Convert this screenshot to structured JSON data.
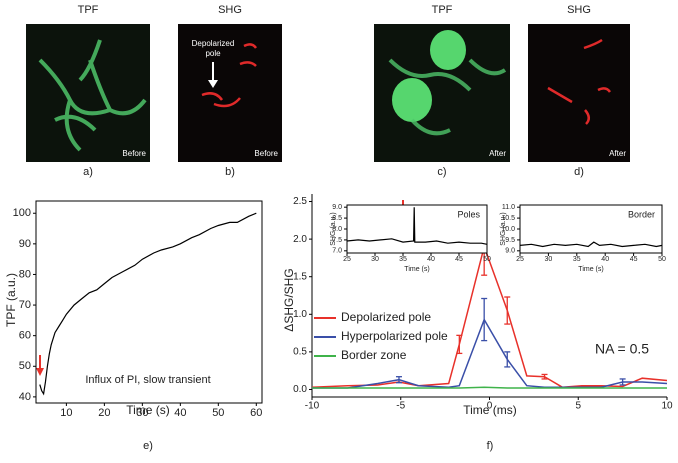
{
  "images": [
    {
      "title": "TPF",
      "tag": "Before",
      "caption": "a)"
    },
    {
      "title": "SHG",
      "tag": "Before",
      "caption": "b)",
      "annotation": [
        "Depolarized",
        "pole"
      ]
    },
    {
      "title": "TPF",
      "tag": "After",
      "caption": "c)"
    },
    {
      "title": "SHG",
      "tag": "After",
      "caption": "d)"
    }
  ],
  "chart_data": [
    {
      "type": "line",
      "caption": "e)",
      "xlabel": "Time (s)",
      "ylabel": "TPF (a.u.)",
      "annotation": "Influx of PI, slow transient",
      "color": "#000000",
      "x": [
        3,
        3.5,
        4,
        4.5,
        5,
        5.5,
        6,
        7,
        8,
        9,
        10,
        12,
        14,
        16,
        18,
        20,
        22,
        25,
        28,
        30,
        33,
        35,
        38,
        40,
        43,
        45,
        48,
        50,
        53,
        55,
        58,
        60
      ],
      "values": [
        44,
        42,
        41,
        45,
        50,
        54,
        57,
        61,
        63,
        65,
        67,
        70,
        72,
        74,
        75,
        77,
        79,
        81,
        83,
        85,
        87,
        88,
        89,
        90,
        92,
        93,
        95,
        96,
        97,
        97,
        99,
        100
      ],
      "xlim": [
        2,
        61.5
      ],
      "ylim": [
        38,
        104
      ],
      "xticks": [
        10,
        20,
        30,
        40,
        50,
        60
      ],
      "yticks": [
        40,
        50,
        60,
        70,
        80,
        90,
        100
      ]
    },
    {
      "type": "line",
      "caption": "f)",
      "xlabel": "Time (ms)",
      "ylabel": "ΔSHG/SHG",
      "annotation": "NA = 0.5",
      "x": [
        -10,
        -8,
        -6.3,
        -5.1,
        -4,
        -2.3,
        -1.7,
        -0.3,
        1,
        2.1,
        3.1,
        4.1,
        5.2,
        6.3,
        7.5,
        8.6,
        10
      ],
      "series": [
        {
          "name": "Depolarized pole",
          "color": "#e8312a",
          "values": [
            0.03,
            0.05,
            0.06,
            0.1,
            0.05,
            0.08,
            0.6,
            1.9,
            1.05,
            0.18,
            0.17,
            0.03,
            0.05,
            0.05,
            0.04,
            0.15,
            0.12
          ],
          "errors": [
            null,
            null,
            null,
            null,
            null,
            null,
            0.12,
            0.38,
            0.18,
            null,
            0.03,
            null,
            null,
            null,
            null,
            null,
            null
          ]
        },
        {
          "name": "Hyperpolarized pole",
          "color": "#3a4fa8",
          "values": [
            0.02,
            0.02,
            0.08,
            0.13,
            0.05,
            0.03,
            0.05,
            0.93,
            0.4,
            0.05,
            0.03,
            0.03,
            0.03,
            0.03,
            0.1,
            0.1,
            0.08
          ],
          "errors": [
            null,
            null,
            null,
            0.04,
            null,
            null,
            null,
            0.28,
            0.1,
            null,
            null,
            null,
            null,
            null,
            0.04,
            null,
            null
          ]
        },
        {
          "name": "Border zone",
          "color": "#3fb34a",
          "values": [
            0.02,
            0.02,
            0.02,
            0.02,
            0.02,
            0.02,
            0.02,
            0.03,
            0.02,
            0.02,
            0.02,
            0.02,
            0.02,
            0.02,
            0.02,
            0.02,
            0.02
          ]
        }
      ],
      "xlim": [
        -10,
        10
      ],
      "ylim": [
        -0.1,
        2.6
      ],
      "xticks": [
        -10,
        -5,
        0,
        5,
        10
      ],
      "yticks": [
        {
          "value": 0,
          "label": "0.0"
        },
        0.5,
        {
          "value": 1,
          "label": "1.0"
        },
        1.5,
        {
          "value": 2,
          "label": "2.0"
        },
        2.5
      ]
    },
    {
      "type": "line",
      "title": "Poles",
      "xlabel": "Time (s)",
      "ylabel": "SHG (a.u.)",
      "color": "#000000",
      "x": [
        25,
        27,
        29,
        31,
        33,
        35,
        36.9,
        37,
        37.1,
        39,
        41,
        43,
        45,
        47,
        49,
        50
      ],
      "values": [
        7.45,
        7.5,
        7.45,
        7.5,
        7.55,
        7.4,
        7.45,
        9.0,
        7.4,
        7.4,
        7.45,
        7.35,
        7.4,
        7.35,
        7.35,
        7.3
      ],
      "xlim": [
        25,
        50
      ],
      "ylim": [
        6.9,
        9.1
      ],
      "xticks": [
        25,
        30,
        35,
        40,
        45,
        50
      ],
      "yticks": [
        {
          "value": 7,
          "label": "7.0"
        },
        7.5,
        {
          "value": 8,
          "label": "8.0"
        },
        8.5,
        {
          "value": 9,
          "label": "9.0"
        }
      ]
    },
    {
      "type": "line",
      "title": "Border",
      "xlabel": "Time (s)",
      "ylabel": "SHG (a.u.)",
      "color": "#000000",
      "x": [
        25,
        27,
        29,
        31,
        33,
        35,
        37,
        38,
        39,
        41,
        43,
        45,
        47,
        49,
        50
      ],
      "values": [
        9.25,
        9.3,
        9.2,
        9.3,
        9.25,
        9.3,
        9.2,
        9.4,
        9.25,
        9.3,
        9.2,
        9.25,
        9.3,
        9.2,
        9.25
      ],
      "xlim": [
        25,
        50
      ],
      "ylim": [
        8.9,
        11.1
      ],
      "xticks": [
        25,
        30,
        35,
        40,
        45,
        50
      ],
      "yticks": [
        {
          "value": 9,
          "label": "9.0"
        },
        9.5,
        {
          "value": 10,
          "label": "10.0"
        },
        10.5,
        {
          "value": 11,
          "label": "11.0"
        }
      ]
    }
  ]
}
